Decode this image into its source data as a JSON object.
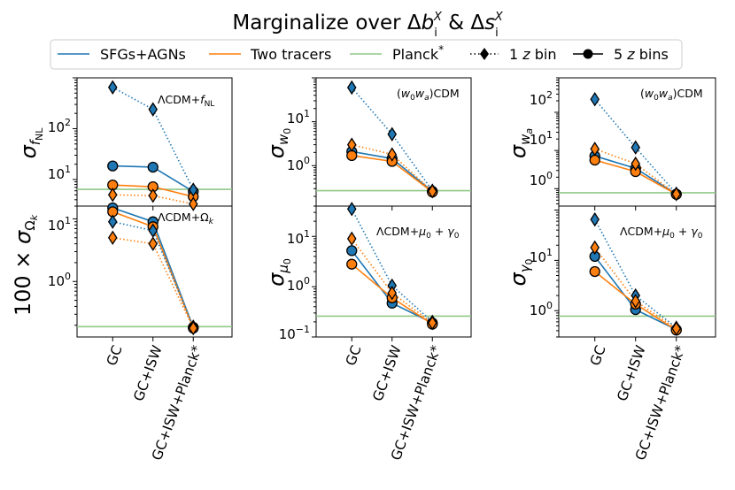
{
  "title": "Marginalize over Δb_i^X & Δs_i^X",
  "title_parts": {
    "pre": "Marginalize over Δ",
    "b": "b",
    "i": "i",
    "X": "X",
    "mid": " & Δ",
    "s": "s"
  },
  "legend": {
    "sfg": "SFGs+AGNs",
    "two": "Two tracers",
    "planck": "Planck",
    "planck_sup": "*",
    "one_bin": "1 z bin",
    "five_bins": "5 z bins",
    "one_bin_parts": {
      "num": "1 ",
      "z": "z",
      "rest": " bin"
    },
    "five_bins_parts": {
      "num": "5 ",
      "z": "z",
      "rest": " bins"
    }
  },
  "colors": {
    "sfg": "#1f77b4",
    "two": "#ff7f0e",
    "planck": "#90c987"
  },
  "tick_labels": {
    "p10m1": "10",
    "p10m1_exp": "−1",
    "p100": "10",
    "p100_exp": "0",
    "p101": "10",
    "p101_exp": "1",
    "p102": "10",
    "p102_exp": "2"
  },
  "chart_data": [
    {
      "id": "fNL",
      "type": "line",
      "yscale": "log",
      "ylim": [
        3.0,
        1000
      ],
      "annotation": "ΛCDM+f_NL",
      "ylabel": "σ_fNL",
      "categories": [
        "GC",
        "GC+ISW",
        "GC+ISW+Planck*"
      ],
      "planck": 6.4,
      "series": [
        {
          "name": "SFGs+AGNs",
          "bins": "5 z bins",
          "values": [
            18.5,
            17.5,
            5.8
          ]
        },
        {
          "name": "Two tracers",
          "bins": "5 z bins",
          "values": [
            7.8,
            7.2,
            4.6
          ]
        },
        {
          "name": "SFGs+AGNs",
          "bins": "1 z bin",
          "values": [
            650,
            240,
            6.3
          ]
        },
        {
          "name": "Two tracers",
          "bins": "1 z bin",
          "values": [
            5.0,
            4.8,
            3.3
          ]
        }
      ]
    },
    {
      "id": "w0",
      "type": "line",
      "yscale": "log",
      "ylim": [
        0.12,
        100
      ],
      "annotation": "(w0wa)CDM",
      "ylabel": "σ_w0",
      "categories": [
        "GC",
        "GC+ISW",
        "GC+ISW+Planck*"
      ],
      "planck": 0.27,
      "series": [
        {
          "name": "SFGs+AGNs",
          "bins": "5 z bins",
          "values": [
            2.1,
            1.45,
            0.26
          ]
        },
        {
          "name": "Two tracers",
          "bins": "5 z bins",
          "values": [
            1.7,
            1.25,
            0.25
          ]
        },
        {
          "name": "SFGs+AGNs",
          "bins": "1 z bin",
          "values": [
            60,
            5.2,
            0.27
          ]
        },
        {
          "name": "Two tracers",
          "bins": "1 z bin",
          "values": [
            3.0,
            1.8,
            0.26
          ]
        }
      ]
    },
    {
      "id": "wa",
      "type": "line",
      "yscale": "log",
      "ylim": [
        0.35,
        800
      ],
      "annotation": "(w0wa)CDM",
      "ylabel": "σ_wa",
      "categories": [
        "GC",
        "GC+ISW",
        "GC+ISW+Planck*"
      ],
      "planck": 0.78,
      "series": [
        {
          "name": "SFGs+AGNs",
          "bins": "5 z bins",
          "values": [
            7.2,
            3.4,
            0.72
          ]
        },
        {
          "name": "Two tracers",
          "bins": "5 z bins",
          "values": [
            5.6,
            2.8,
            0.71
          ]
        },
        {
          "name": "SFGs+AGNs",
          "bins": "1 z bin",
          "values": [
            220,
            12,
            0.74
          ]
        },
        {
          "name": "Two tracers",
          "bins": "1 z bin",
          "values": [
            11,
            4.5,
            0.72
          ]
        }
      ]
    },
    {
      "id": "Ok",
      "type": "line",
      "yscale": "log",
      "ylim": [
        0.13,
        16
      ],
      "annotation": "ΛCDM+Ω_k",
      "ylabel": "100 × σ_Ωk",
      "categories": [
        "GC",
        "GC+ISW",
        "GC+ISW+Planck*"
      ],
      "planck": 0.19,
      "series": [
        {
          "name": "SFGs+AGNs",
          "bins": "5 z bins",
          "values": [
            15,
            9.0,
            0.185
          ]
        },
        {
          "name": "Two tracers",
          "bins": "5 z bins",
          "values": [
            13,
            7.5,
            0.18
          ]
        },
        {
          "name": "SFGs+AGNs",
          "bins": "1 z bin",
          "values": [
            9.0,
            6.5,
            0.19
          ]
        },
        {
          "name": "Two tracers",
          "bins": "1 z bin",
          "values": [
            5.0,
            4.0,
            0.18
          ]
        }
      ]
    },
    {
      "id": "mu0",
      "type": "line",
      "yscale": "log",
      "ylim": [
        0.1,
        40
      ],
      "annotation": "ΛCDM+μ0+γ0",
      "ylabel": "σ_μ0",
      "categories": [
        "GC",
        "GC+ISW",
        "GC+ISW+Planck*"
      ],
      "planck": 0.26,
      "series": [
        {
          "name": "SFGs+AGNs",
          "bins": "5 z bins",
          "values": [
            5.2,
            0.47,
            0.19
          ]
        },
        {
          "name": "Two tracers",
          "bins": "5 z bins",
          "values": [
            2.8,
            0.6,
            0.18
          ]
        },
        {
          "name": "SFGs+AGNs",
          "bins": "1 z bin",
          "values": [
            35,
            1.05,
            0.2
          ]
        },
        {
          "name": "Two tracers",
          "bins": "1 z bin",
          "values": [
            9.0,
            0.75,
            0.19
          ]
        }
      ]
    },
    {
      "id": "g0",
      "type": "line",
      "yscale": "log",
      "ylim": [
        0.3,
        120
      ],
      "annotation": "ΛCDM+μ0+γ0",
      "ylabel": "σ_γ0",
      "categories": [
        "GC",
        "GC+ISW",
        "GC+ISW+Planck*"
      ],
      "planck": 0.78,
      "series": [
        {
          "name": "SFGs+AGNs",
          "bins": "5 z bins",
          "values": [
            12,
            1.05,
            0.42
          ]
        },
        {
          "name": "Two tracers",
          "bins": "5 z bins",
          "values": [
            6.0,
            1.35,
            0.41
          ]
        },
        {
          "name": "SFGs+AGNs",
          "bins": "1 z bin",
          "values": [
            65,
            2.0,
            0.46
          ]
        },
        {
          "name": "Two tracers",
          "bins": "1 z bin",
          "values": [
            18,
            1.55,
            0.44
          ]
        }
      ]
    }
  ]
}
